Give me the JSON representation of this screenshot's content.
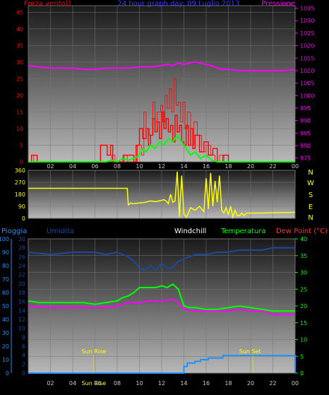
{
  "chart_data": [
    {
      "type": "line",
      "title": "24 hour graph day: 09 Luglio 2013",
      "left_label": "Forza vento()",
      "right_label": "Pressione",
      "x_ticks": [
        "02",
        "04",
        "06",
        "08",
        "10",
        "12",
        "14",
        "16",
        "18",
        "20",
        "22",
        "00"
      ],
      "y_left_ticks": [
        "0",
        "5",
        "10",
        "15",
        "20",
        "25",
        "30",
        "35",
        "40",
        "45"
      ],
      "y_right_ticks": [
        "975",
        "980",
        "985",
        "990",
        "995",
        "1000",
        "1005",
        "1010",
        "1015",
        "1020",
        "1025",
        "1030",
        "1035"
      ],
      "ylim_left": [
        0,
        47
      ],
      "ylim_right": [
        973.5,
        1036
      ],
      "colors": {
        "wind": "#ff0000",
        "gust": "#ff0000",
        "speed": "#00ff00",
        "pressure": "#ff00ff"
      },
      "series": [
        {
          "key": "pressure",
          "axis": "right",
          "x": [
            0,
            1,
            2,
            3,
            4,
            5,
            6,
            7,
            8,
            9,
            10,
            11,
            12,
            12.5,
            13,
            13.5,
            14,
            14.5,
            15,
            15.5,
            16,
            16.5,
            17,
            17.5,
            18,
            19,
            20,
            21,
            22,
            23,
            24
          ],
          "values": [
            1012,
            1011.5,
            1011,
            1011,
            1011,
            1010.5,
            1010.5,
            1011,
            1011,
            1011,
            1011.5,
            1011.5,
            1012,
            1012.5,
            1012,
            1013,
            1012.5,
            1013,
            1013.5,
            1013,
            1012.5,
            1012,
            1011,
            1010.5,
            1010.5,
            1010,
            1010,
            1010,
            1010,
            1010,
            1010.5
          ]
        },
        {
          "key": "gust",
          "axis": "left",
          "x": [
            0,
            0.2,
            0.3,
            0.5,
            7.3,
            7.5,
            7.8,
            8.3,
            8.5,
            8.9,
            9.4,
            9.8,
            10.2,
            10.4,
            10.6,
            10.9,
            11.2,
            11.4,
            11.6,
            11.9,
            12.1,
            12.3,
            12.5,
            12.7,
            12.9,
            13.1,
            13.3,
            13.5,
            13.7,
            13.9,
            14.1,
            14.3,
            14.6,
            14.9,
            15.2,
            15.6,
            16,
            16.4,
            16.8,
            17.2,
            17.6,
            18,
            24
          ],
          "values": [
            0,
            0,
            2,
            0,
            0,
            2,
            0,
            0,
            2,
            0,
            0,
            5,
            2,
            15,
            10,
            8,
            18,
            12,
            15,
            17,
            12,
            20,
            16,
            22,
            15,
            25,
            17,
            18,
            12,
            18,
            10,
            15,
            5,
            12,
            8,
            3,
            5,
            2,
            0,
            2,
            0,
            0,
            0
          ]
        },
        {
          "key": "wind",
          "axis": "left",
          "x": [
            0,
            0.3,
            0.5,
            0.8,
            6.3,
            6.5,
            6.9,
            7.1,
            7.4,
            7.6,
            8.4,
            8.6,
            9.5,
            9.7,
            10,
            10.3,
            10.6,
            10.8,
            11,
            11.2,
            11.4,
            11.6,
            11.8,
            12,
            12.2,
            12.4,
            12.6,
            12.8,
            13,
            13.2,
            13.4,
            13.6,
            13.8,
            14,
            14.2,
            14.4,
            14.6,
            14.8,
            15,
            15.4,
            15.8,
            16.2,
            16.6,
            17,
            17.5,
            18,
            24
          ],
          "values": [
            0,
            2,
            2,
            0,
            0,
            5,
            5,
            2,
            5,
            0,
            0,
            2,
            0,
            5,
            10,
            7,
            10,
            5,
            8,
            13,
            9,
            12,
            7,
            15,
            10,
            13,
            9,
            11,
            6,
            14,
            9,
            11,
            6,
            5,
            11,
            5,
            10,
            4,
            8,
            3,
            6,
            2,
            4,
            0,
            2,
            0,
            0
          ]
        },
        {
          "key": "speed",
          "axis": "left",
          "x": [
            0,
            7,
            7.5,
            8,
            8.5,
            9,
            9.5,
            10,
            10.3,
            10.6,
            11,
            11.4,
            11.8,
            12.2,
            12.6,
            13,
            13.4,
            13.8,
            14.2,
            14.6,
            15,
            15.5,
            16,
            16.5,
            17,
            24
          ],
          "values": [
            0,
            0,
            0.5,
            0,
            1,
            0.5,
            1,
            2,
            4,
            3,
            5,
            4,
            6,
            5,
            7,
            6,
            8,
            6,
            4,
            2,
            3,
            1,
            2,
            0.5,
            0,
            0
          ]
        }
      ]
    },
    {
      "type": "line",
      "right_letters": [
        "N",
        "W",
        "S",
        "E",
        "N"
      ],
      "y_ticks": [
        "0",
        "90",
        "180",
        "270",
        "360"
      ],
      "ylim": [
        0,
        360
      ],
      "colors": {
        "direction": "#ffff00"
      },
      "series": [
        {
          "key": "direction",
          "x": [
            0,
            8.9,
            9,
            9.2,
            9.4,
            10,
            10.5,
            11,
            11.5,
            12,
            12.2,
            12.4,
            12.6,
            12.8,
            13,
            13.2,
            13.4,
            13.6,
            13.8,
            14,
            14.2,
            14.4,
            14.6,
            15,
            15.4,
            15.8,
            16,
            16.2,
            16.4,
            16.6,
            16.8,
            17,
            17.2,
            17.4,
            17.6,
            17.8,
            18,
            18.2,
            18.4,
            18.6,
            18.8,
            19,
            19.2,
            19.4,
            19.6,
            20,
            21,
            24
          ],
          "values": [
            225,
            225,
            100,
            115,
            110,
            115,
            120,
            130,
            125,
            135,
            140,
            130,
            110,
            180,
            120,
            130,
            350,
            10,
            320,
            30,
            10,
            40,
            80,
            60,
            90,
            50,
            300,
            70,
            340,
            90,
            280,
            120,
            320,
            60,
            40,
            80,
            30,
            90,
            10,
            60,
            20,
            20,
            40,
            20,
            40,
            40,
            40,
            45
          ]
        }
      ]
    },
    {
      "type": "line",
      "left_label": "Pioggia",
      "left_label2": "Umidita",
      "center_label": "Windchill",
      "mid_label": "Temperatura",
      "right_label": "Dew Point (°C)",
      "sun_rise_label": "Sun Rise",
      "sun_set_label": "Sun Set",
      "sun_rise_x": 5.9,
      "sun_set_x": 20.2,
      "x_ticks": [
        "02",
        "04",
        "Sun Rise",
        "06",
        "08",
        "10",
        "12",
        "14",
        "16",
        "18",
        "20",
        "22",
        "00"
      ],
      "y_rain_ticks": [
        "0",
        "10",
        "20",
        "30",
        "40",
        "50",
        "60",
        "70",
        "80",
        "90",
        "100"
      ],
      "y_hum_ticks": [
        "0",
        "2",
        "4",
        "6",
        "8",
        "10",
        "12",
        "14",
        "16",
        "18",
        "20",
        "22",
        "24",
        "26",
        "28",
        "30"
      ],
      "y_temp_ticks": [
        "0",
        "5",
        "10",
        "15",
        "20",
        "25",
        "30",
        "35",
        "40"
      ],
      "ylim_temp": [
        0,
        40
      ],
      "ylim_hum": [
        0,
        30
      ],
      "colors": {
        "humidity": "#1a4aa0",
        "temperature": "#00ff00",
        "dewpoint": "#ff00ff",
        "rain": "#1e90ff"
      },
      "series": [
        {
          "key": "humidity",
          "axis": "hum",
          "x": [
            0,
            2,
            4,
            5,
            6,
            7,
            8,
            9,
            9.5,
            10,
            10.5,
            11,
            11.5,
            12,
            12.5,
            13,
            13.5,
            14,
            14.5,
            15,
            16,
            17,
            18,
            19,
            20,
            21,
            22,
            23,
            24
          ],
          "values": [
            27,
            26.5,
            27,
            27,
            27,
            26.5,
            27,
            26,
            25,
            23.5,
            23,
            24,
            23,
            24.5,
            23.5,
            23.5,
            25,
            25.5,
            26,
            26.5,
            26.5,
            27,
            27,
            27.5,
            27.5,
            27.5,
            28,
            28,
            28
          ]
        },
        {
          "key": "temperature",
          "axis": "temp",
          "x": [
            0,
            1,
            2,
            3,
            4,
            5,
            6,
            7,
            8,
            8.5,
            9,
            9.5,
            10,
            10.5,
            11,
            11.5,
            12,
            12.5,
            13,
            13.5,
            14,
            14.5,
            15,
            16,
            17,
            18,
            19,
            20,
            21,
            22,
            23,
            24
          ],
          "values": [
            21.5,
            21,
            21,
            21,
            21,
            21,
            20.5,
            21,
            21.5,
            22.5,
            23,
            24,
            25.5,
            25.5,
            25.5,
            25.5,
            26,
            25.5,
            26.5,
            25,
            20,
            19.5,
            19.5,
            19,
            19,
            19.5,
            20,
            19.5,
            19,
            18.5,
            18.5,
            18.5
          ]
        },
        {
          "key": "dewpoint",
          "axis": "temp",
          "x": [
            0,
            2,
            4,
            6,
            7,
            8,
            9,
            10,
            11,
            12,
            13,
            13.5,
            14,
            15,
            16,
            17,
            18,
            19,
            20,
            21,
            22,
            23,
            24
          ],
          "values": [
            20,
            19.5,
            19.5,
            19.5,
            19.5,
            20,
            21,
            21,
            21.5,
            21.5,
            22,
            21,
            19,
            18.5,
            18.5,
            18.5,
            18.5,
            19,
            18.5,
            18.5,
            17.5,
            17.5,
            17.5
          ]
        },
        {
          "key": "rain",
          "axis": "temp",
          "x": [
            0,
            13.9,
            14,
            14.3,
            15,
            15.5,
            16.2,
            17,
            17.5,
            24,
            24
          ],
          "values": [
            0,
            0,
            2,
            3,
            3.5,
            4,
            4.5,
            4.5,
            5.2,
            5.2,
            0
          ]
        }
      ]
    }
  ]
}
